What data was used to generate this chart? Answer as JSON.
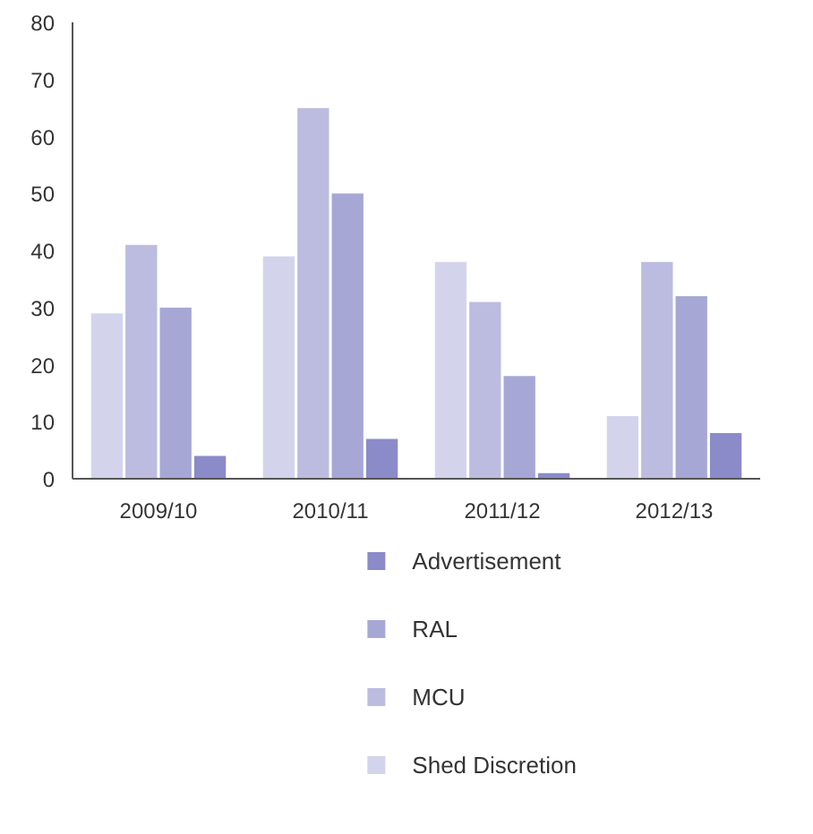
{
  "chart_data": {
    "type": "bar",
    "categories": [
      "2009/10",
      "2010/11",
      "2011/12",
      "2012/13"
    ],
    "series": [
      {
        "name": "Shed Discretion",
        "color": "#d3d4ec",
        "values": [
          29,
          39,
          38,
          11
        ]
      },
      {
        "name": "MCU",
        "color": "#bbbcdf",
        "values": [
          41,
          65,
          31,
          38
        ]
      },
      {
        "name": "RAL",
        "color": "#a6a7d5",
        "values": [
          30,
          50,
          18,
          32
        ]
      },
      {
        "name": "Advertisement",
        "color": "#8a8bc8",
        "values": [
          4,
          7,
          1,
          8
        ]
      }
    ],
    "ylim": [
      0,
      80
    ],
    "yticks": [
      0,
      10,
      20,
      30,
      40,
      50,
      60,
      70,
      80
    ],
    "grid": false,
    "legend": "bottom"
  }
}
